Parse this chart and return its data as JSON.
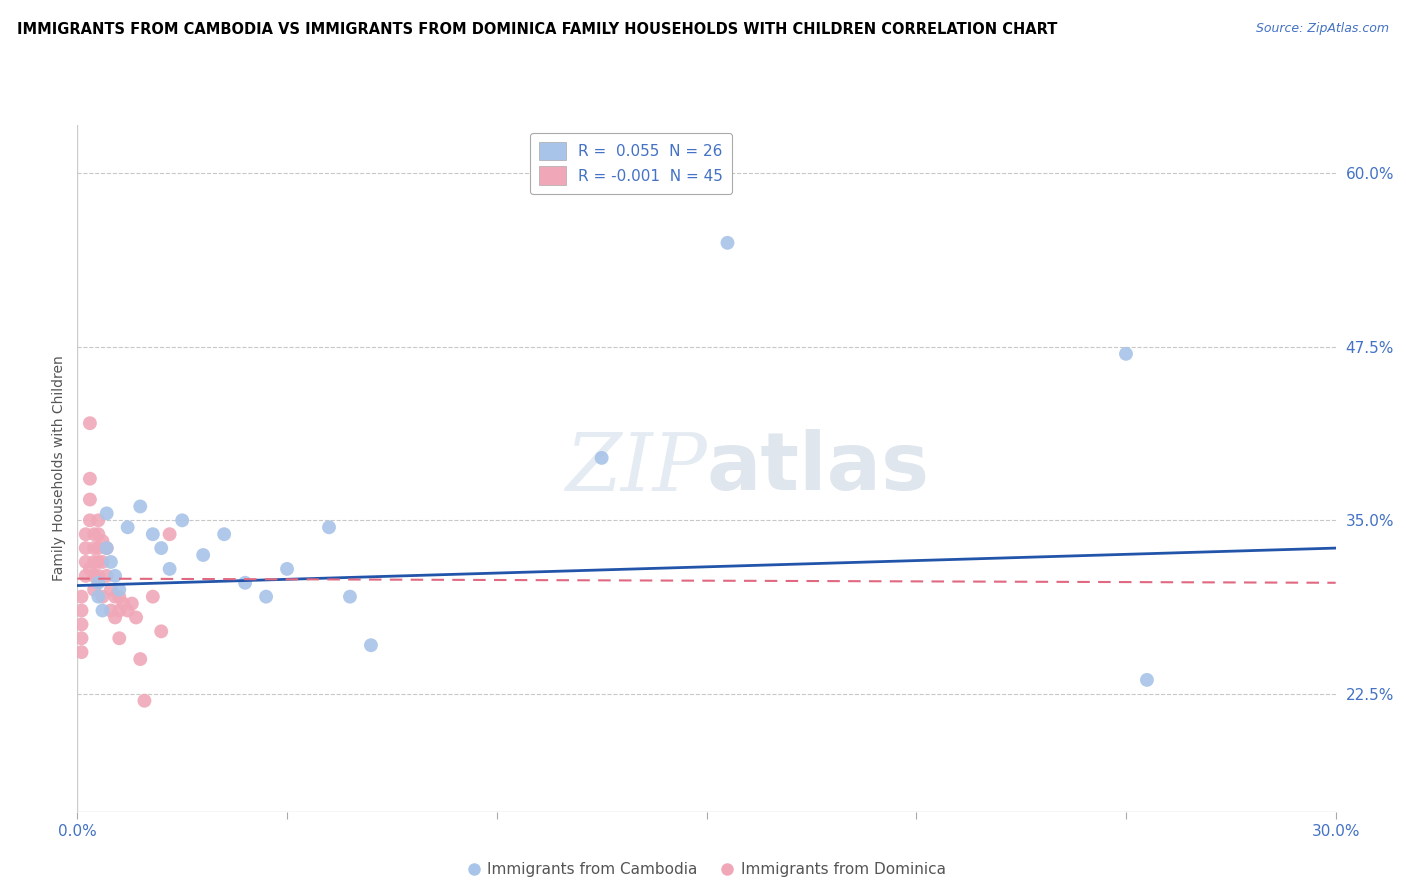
{
  "title": "IMMIGRANTS FROM CAMBODIA VS IMMIGRANTS FROM DOMINICA FAMILY HOUSEHOLDS WITH CHILDREN CORRELATION CHART",
  "source": "Source: ZipAtlas.com",
  "ylabel": "Family Households with Children",
  "xlim": [
    0.0,
    0.3
  ],
  "ylim": [
    0.14,
    0.635
  ],
  "xticks": [
    0.0,
    0.05,
    0.1,
    0.15,
    0.2,
    0.25,
    0.3
  ],
  "xticklabels": [
    "0.0%",
    "",
    "",
    "",
    "",
    "",
    "30.0%"
  ],
  "yticks_right": [
    0.225,
    0.35,
    0.475,
    0.6
  ],
  "ytick_labels_right": [
    "22.5%",
    "35.0%",
    "47.5%",
    "60.0%"
  ],
  "r_cambodia": 0.055,
  "n_cambodia": 26,
  "r_dominica": -0.001,
  "n_dominica": 45,
  "cambodia_color": "#a8c4e8",
  "dominica_color": "#f0a8b8",
  "trend_cambodia_color": "#2255aa",
  "trend_dominica_color": "#e06880",
  "watermark_zip": "ZIP",
  "watermark_atlas": "atlas",
  "cambodia_x": [
    0.005,
    0.005,
    0.006,
    0.007,
    0.007,
    0.008,
    0.009,
    0.01,
    0.012,
    0.015,
    0.018,
    0.02,
    0.022,
    0.025,
    0.03,
    0.035,
    0.04,
    0.045,
    0.05,
    0.06,
    0.065,
    0.07,
    0.125,
    0.155,
    0.25,
    0.255
  ],
  "cambodia_y": [
    0.305,
    0.295,
    0.285,
    0.355,
    0.33,
    0.32,
    0.31,
    0.3,
    0.345,
    0.36,
    0.34,
    0.33,
    0.315,
    0.35,
    0.325,
    0.34,
    0.305,
    0.295,
    0.315,
    0.345,
    0.295,
    0.26,
    0.395,
    0.55,
    0.47,
    0.235
  ],
  "dominica_x": [
    0.001,
    0.001,
    0.001,
    0.001,
    0.001,
    0.002,
    0.002,
    0.002,
    0.002,
    0.003,
    0.003,
    0.003,
    0.003,
    0.003,
    0.004,
    0.004,
    0.004,
    0.004,
    0.004,
    0.005,
    0.005,
    0.005,
    0.005,
    0.005,
    0.006,
    0.006,
    0.006,
    0.007,
    0.007,
    0.008,
    0.008,
    0.009,
    0.009,
    0.01,
    0.01,
    0.01,
    0.011,
    0.012,
    0.013,
    0.014,
    0.015,
    0.016,
    0.018,
    0.02,
    0.022
  ],
  "dominica_y": [
    0.295,
    0.285,
    0.275,
    0.265,
    0.255,
    0.34,
    0.33,
    0.32,
    0.31,
    0.42,
    0.38,
    0.365,
    0.35,
    0.315,
    0.34,
    0.33,
    0.32,
    0.31,
    0.3,
    0.35,
    0.34,
    0.33,
    0.32,
    0.31,
    0.335,
    0.32,
    0.295,
    0.33,
    0.31,
    0.3,
    0.285,
    0.295,
    0.28,
    0.295,
    0.285,
    0.265,
    0.29,
    0.285,
    0.29,
    0.28,
    0.25,
    0.22,
    0.295,
    0.27,
    0.34
  ],
  "trend_cam_x0": 0.0,
  "trend_cam_x1": 0.3,
  "trend_cam_y0": 0.303,
  "trend_cam_y1": 0.33,
  "trend_dom_x0": 0.0,
  "trend_dom_x1": 0.3,
  "trend_dom_y0": 0.308,
  "trend_dom_y1": 0.305
}
